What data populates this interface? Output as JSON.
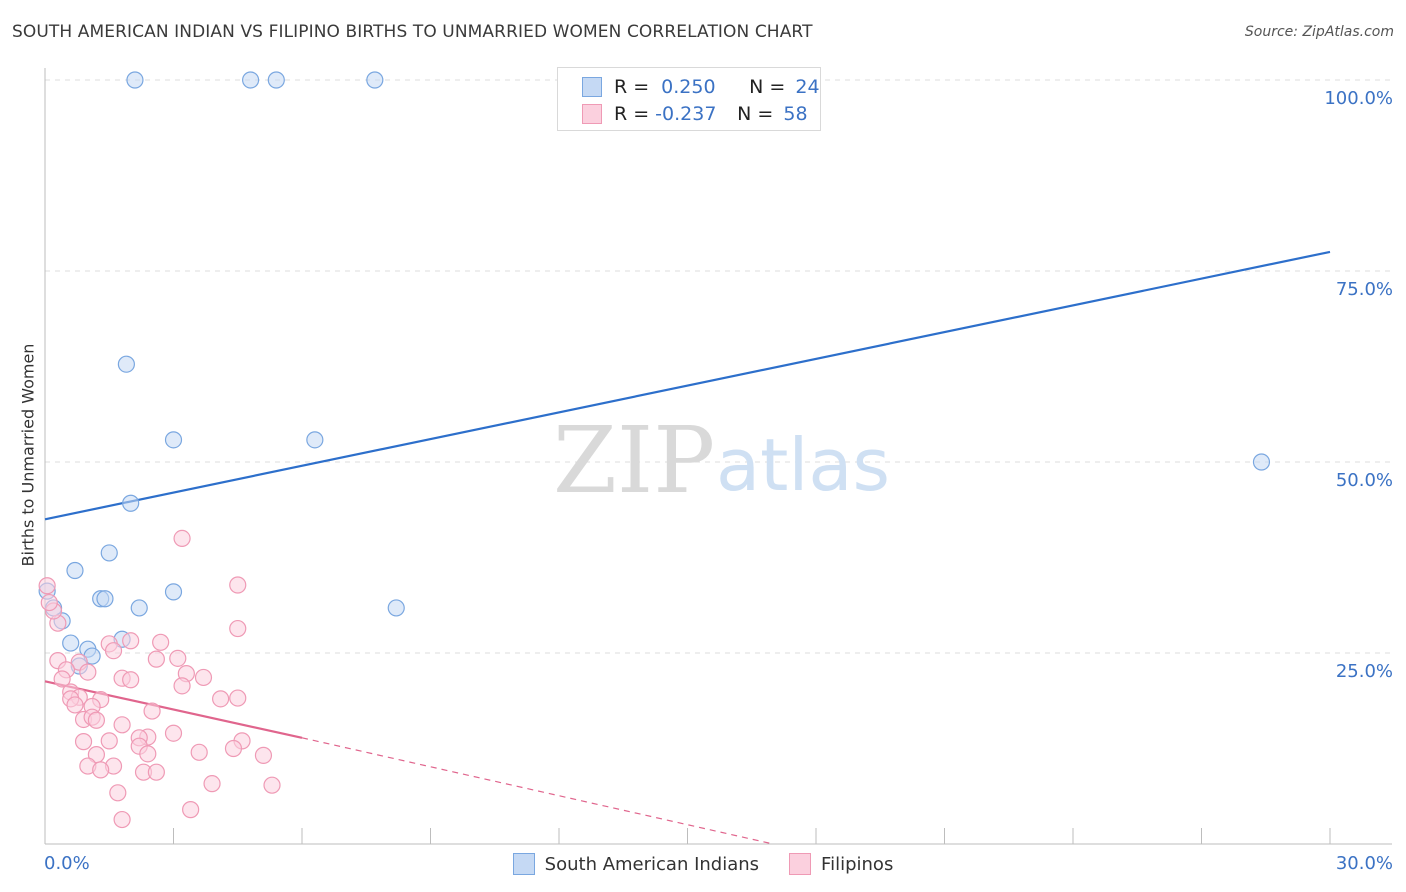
{
  "chart_data": {
    "type": "scatter",
    "title": "SOUTH AMERICAN INDIAN VS FILIPINO BIRTHS TO UNMARRIED WOMEN CORRELATION CHART",
    "source": "Source: ZipAtlas.com",
    "xlabel": "",
    "ylabel": "Births to Unmarried Women",
    "xlim": [
      0,
      30
    ],
    "ylim": [
      0,
      100
    ],
    "x_tick_labels": [
      "0.0%",
      "30.0%"
    ],
    "y_tick_labels": [
      "100.0%",
      "75.0%",
      "50.0%",
      "25.0%"
    ],
    "y_ticks": [
      100,
      75,
      50,
      25
    ],
    "watermark": {
      "zip": "ZIP",
      "atlas": "atlas"
    },
    "legend_stats": [
      {
        "r_label": "R =",
        "r_value": "0.250",
        "n_label": "N =",
        "n_value": "24"
      },
      {
        "r_label": "R =",
        "r_value": "-0.237",
        "n_label": "N =",
        "n_value": "58"
      }
    ],
    "series": [
      {
        "name": "South American Indians",
        "color": "#7aa7e0",
        "fill": "#c5d9f4",
        "line_color": "#2d6fcb",
        "trend": {
          "x": [
            0,
            30
          ],
          "y": [
            42.5,
            77.5
          ]
        },
        "points": [
          [
            2.1,
            100
          ],
          [
            4.8,
            100
          ],
          [
            5.4,
            100
          ],
          [
            7.7,
            100
          ],
          [
            1.9,
            62.8
          ],
          [
            3.0,
            52.9
          ],
          [
            6.3,
            52.9
          ],
          [
            28.4,
            50.0
          ],
          [
            2.0,
            44.6
          ],
          [
            1.5,
            38.1
          ],
          [
            0.7,
            35.8
          ],
          [
            1.3,
            32.1
          ],
          [
            1.4,
            32.1
          ],
          [
            2.2,
            30.9
          ],
          [
            3.0,
            33.0
          ],
          [
            8.2,
            30.9
          ],
          [
            0.2,
            30.9
          ],
          [
            0.4,
            29.2
          ],
          [
            0.6,
            26.3
          ],
          [
            1.0,
            25.5
          ],
          [
            1.8,
            26.8
          ],
          [
            1.1,
            24.6
          ],
          [
            0.8,
            23.3
          ],
          [
            0.05,
            33.1
          ]
        ]
      },
      {
        "name": "Filipinos",
        "color": "#ef9ab5",
        "fill": "#fbd0de",
        "line_color": "#e0658d",
        "trend": {
          "x": [
            0,
            6.0
          ],
          "y": [
            21.3,
            13.9
          ]
        },
        "trend_dashed": {
          "x": [
            6.0,
            17.0
          ],
          "y": [
            13.9,
            0.0
          ]
        },
        "points": [
          [
            3.2,
            40.0
          ],
          [
            4.5,
            33.9
          ],
          [
            0.3,
            28.9
          ],
          [
            4.5,
            28.2
          ],
          [
            0.2,
            30.5
          ],
          [
            2.0,
            26.6
          ],
          [
            2.7,
            26.4
          ],
          [
            1.5,
            26.2
          ],
          [
            1.6,
            25.3
          ],
          [
            0.3,
            24.0
          ],
          [
            0.8,
            23.8
          ],
          [
            2.6,
            24.2
          ],
          [
            3.1,
            24.3
          ],
          [
            0.5,
            22.8
          ],
          [
            1.0,
            22.5
          ],
          [
            3.3,
            22.3
          ],
          [
            3.7,
            21.8
          ],
          [
            1.8,
            21.7
          ],
          [
            2.0,
            21.5
          ],
          [
            0.4,
            21.6
          ],
          [
            3.2,
            20.7
          ],
          [
            0.6,
            19.9
          ],
          [
            0.8,
            19.2
          ],
          [
            0.6,
            19.0
          ],
          [
            1.3,
            18.9
          ],
          [
            1.1,
            18.0
          ],
          [
            4.1,
            19.0
          ],
          [
            4.5,
            19.1
          ],
          [
            0.7,
            18.2
          ],
          [
            2.5,
            17.4
          ],
          [
            0.9,
            16.3
          ],
          [
            1.1,
            16.6
          ],
          [
            1.2,
            16.2
          ],
          [
            1.8,
            15.6
          ],
          [
            3.0,
            14.5
          ],
          [
            2.4,
            14.0
          ],
          [
            2.2,
            13.9
          ],
          [
            4.6,
            13.5
          ],
          [
            0.9,
            13.4
          ],
          [
            1.5,
            13.5
          ],
          [
            2.2,
            12.8
          ],
          [
            3.6,
            12.0
          ],
          [
            4.4,
            12.5
          ],
          [
            1.2,
            11.7
          ],
          [
            2.4,
            11.8
          ],
          [
            5.1,
            11.6
          ],
          [
            1.0,
            10.2
          ],
          [
            1.6,
            10.2
          ],
          [
            1.3,
            9.7
          ],
          [
            2.3,
            9.4
          ],
          [
            2.6,
            9.4
          ],
          [
            3.9,
            7.9
          ],
          [
            5.3,
            7.7
          ],
          [
            1.7,
            6.7
          ],
          [
            3.4,
            4.5
          ],
          [
            1.8,
            3.2
          ],
          [
            0.05,
            33.8
          ],
          [
            0.1,
            31.6
          ]
        ]
      }
    ]
  }
}
